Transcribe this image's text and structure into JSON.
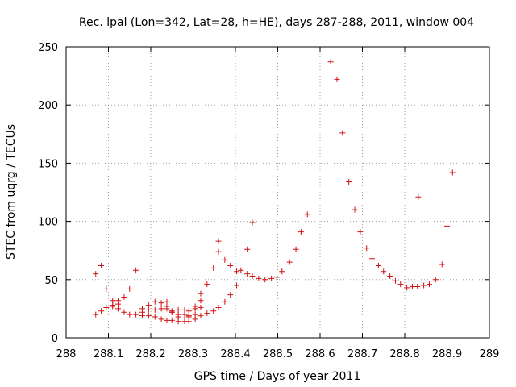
{
  "chart_data": {
    "type": "scatter",
    "title": "Rec. lpal (Lon=342, Lat=28, h=HE), days 287-288, 2011, window 004",
    "xlabel": "GPS time / Days of year 2011",
    "ylabel": "STEC from uqrg / TECUs",
    "xlim": [
      288,
      289
    ],
    "ylim": [
      0,
      250
    ],
    "xticks": [
      "288",
      "288.1",
      "288.2",
      "288.3",
      "288.4",
      "288.5",
      "288.6",
      "288.7",
      "288.8",
      "288.9",
      "289"
    ],
    "yticks": [
      "0",
      "50",
      "100",
      "150",
      "200",
      "250"
    ],
    "grid": true,
    "marker": "+",
    "color": "#d01010",
    "series": [
      {
        "points": [
          [
            288.07,
            55
          ],
          [
            288.083,
            62
          ],
          [
            288.095,
            42
          ],
          [
            288.11,
            32
          ],
          [
            288.123,
            32
          ],
          [
            288.137,
            35
          ],
          [
            288.15,
            42
          ],
          [
            288.165,
            58
          ],
          [
            288.18,
            25
          ],
          [
            288.195,
            28
          ],
          [
            288.21,
            31
          ],
          [
            288.225,
            30
          ],
          [
            288.238,
            31
          ],
          [
            288.25,
            23
          ],
          [
            288.265,
            24
          ],
          [
            288.28,
            24
          ],
          [
            288.29,
            23
          ],
          [
            288.305,
            27
          ],
          [
            288.318,
            38
          ],
          [
            288.333,
            46
          ],
          [
            288.348,
            60
          ],
          [
            288.36,
            83
          ],
          [
            288.36,
            74
          ],
          [
            288.375,
            67
          ],
          [
            288.388,
            62
          ],
          [
            288.403,
            57
          ],
          [
            288.413,
            58
          ],
          [
            288.428,
            76
          ],
          [
            288.44,
            99
          ],
          [
            288.428,
            55
          ],
          [
            288.44,
            53
          ],
          [
            288.455,
            51
          ],
          [
            288.47,
            50
          ],
          [
            288.485,
            51
          ],
          [
            288.498,
            52
          ],
          [
            288.51,
            57
          ],
          [
            288.528,
            65
          ],
          [
            288.543,
            76
          ],
          [
            288.555,
            91
          ],
          [
            288.57,
            106
          ],
          [
            288.625,
            237
          ],
          [
            288.64,
            222
          ],
          [
            288.653,
            176
          ],
          [
            288.668,
            134
          ],
          [
            288.682,
            110
          ],
          [
            288.695,
            91
          ],
          [
            288.71,
            77
          ],
          [
            288.723,
            68
          ],
          [
            288.738,
            62
          ],
          [
            288.75,
            57
          ],
          [
            288.765,
            53
          ],
          [
            288.778,
            49
          ],
          [
            288.79,
            46
          ],
          [
            288.805,
            43
          ],
          [
            288.818,
            44
          ],
          [
            288.83,
            44
          ],
          [
            288.845,
            45
          ],
          [
            288.858,
            46
          ],
          [
            288.873,
            50
          ],
          [
            288.888,
            63
          ],
          [
            288.9,
            96
          ],
          [
            288.913,
            142
          ],
          [
            288.832,
            121
          ],
          [
            288.07,
            20
          ],
          [
            288.083,
            23
          ],
          [
            288.095,
            26
          ],
          [
            288.11,
            27
          ],
          [
            288.123,
            25
          ],
          [
            288.137,
            22
          ],
          [
            288.15,
            20
          ],
          [
            288.165,
            20
          ],
          [
            288.18,
            19
          ],
          [
            288.195,
            19
          ],
          [
            288.21,
            18
          ],
          [
            288.225,
            16
          ],
          [
            288.238,
            15
          ],
          [
            288.25,
            15
          ],
          [
            288.265,
            14
          ],
          [
            288.28,
            14
          ],
          [
            288.29,
            14
          ],
          [
            288.305,
            16
          ],
          [
            288.318,
            19
          ],
          [
            288.333,
            21
          ],
          [
            288.348,
            23
          ],
          [
            288.36,
            26
          ],
          [
            288.375,
            31
          ],
          [
            288.388,
            37
          ],
          [
            288.403,
            45
          ],
          [
            288.11,
            28
          ],
          [
            288.123,
            29
          ],
          [
            288.18,
            22
          ],
          [
            288.195,
            24
          ],
          [
            288.21,
            24
          ],
          [
            288.225,
            25
          ],
          [
            288.238,
            25
          ],
          [
            288.25,
            22
          ],
          [
            288.265,
            20
          ],
          [
            288.28,
            20
          ],
          [
            288.29,
            18
          ],
          [
            288.305,
            20
          ],
          [
            288.318,
            26
          ],
          [
            288.318,
            32
          ],
          [
            288.305,
            25
          ],
          [
            288.29,
            19
          ],
          [
            288.28,
            17
          ],
          [
            288.265,
            18
          ],
          [
            288.25,
            22
          ],
          [
            288.238,
            27
          ]
        ]
      }
    ]
  }
}
